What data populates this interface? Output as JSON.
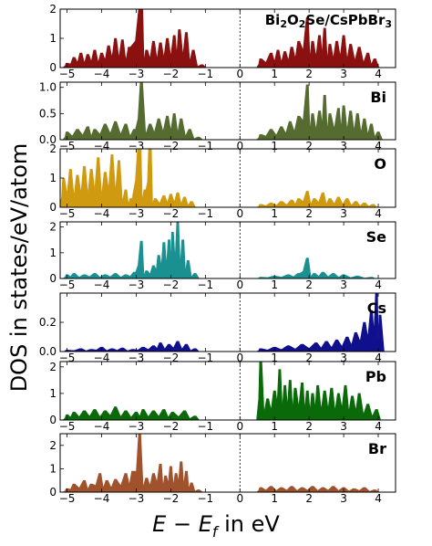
{
  "figure": {
    "ylabel": "DOS in states/eV/atom",
    "xlabel_italic": "E − E",
    "xlabel_sub": "f",
    "xlabel_rest": " in eV",
    "fermi_level": 0
  },
  "chart_data": [
    {
      "type": "area",
      "label_main": "Bi",
      "label_sub1": "2",
      "label_o": "O",
      "label_sub2": "2",
      "label_rest": "Se/CsPbBr",
      "label_sub3": "3",
      "color": "#8b1010",
      "xlim": [
        -5.2,
        4.5
      ],
      "ylim": [
        0,
        2
      ],
      "xticks": [
        -5,
        -4,
        -3,
        -2,
        -1,
        0,
        1,
        2,
        3,
        4
      ],
      "yticks": [
        0,
        1,
        2
      ],
      "peaks": [
        [
          -5.0,
          0.15
        ],
        [
          -4.8,
          0.35
        ],
        [
          -4.6,
          0.5
        ],
        [
          -4.4,
          0.45
        ],
        [
          -4.2,
          0.6
        ],
        [
          -4.0,
          0.5
        ],
        [
          -3.8,
          0.75
        ],
        [
          -3.6,
          1.0
        ],
        [
          -3.4,
          0.95
        ],
        [
          -3.2,
          0.7
        ],
        [
          -2.85,
          2.6
        ],
        [
          -2.7,
          0.6
        ],
        [
          -2.5,
          0.9
        ],
        [
          -2.3,
          0.85
        ],
        [
          -2.1,
          1.0
        ],
        [
          -1.9,
          1.1
        ],
        [
          -1.75,
          1.3
        ],
        [
          -1.55,
          1.2
        ],
        [
          -1.35,
          0.6
        ],
        [
          -1.1,
          0.1
        ],
        [
          0.6,
          0.3
        ],
        [
          0.9,
          0.5
        ],
        [
          1.1,
          0.6
        ],
        [
          1.3,
          0.55
        ],
        [
          1.5,
          0.7
        ],
        [
          1.7,
          0.9
        ],
        [
          1.95,
          1.7
        ],
        [
          2.1,
          0.9
        ],
        [
          2.3,
          1.1
        ],
        [
          2.45,
          1.35
        ],
        [
          2.6,
          0.8
        ],
        [
          2.8,
          0.9
        ],
        [
          3.0,
          1.1
        ],
        [
          3.2,
          0.8
        ],
        [
          3.45,
          0.7
        ],
        [
          3.7,
          0.5
        ],
        [
          3.9,
          0.3
        ]
      ]
    },
    {
      "type": "area",
      "label": "Bi",
      "color": "#556b2f",
      "xlim": [
        -5.2,
        4.5
      ],
      "ylim": [
        0,
        1.1
      ],
      "xticks": [
        -5,
        -4,
        -3,
        -2,
        -1,
        0,
        1,
        2,
        3,
        4
      ],
      "yticks": [
        0,
        0.5,
        1.0
      ],
      "ytick_labels": [
        "0.0",
        "0.5",
        "1.0"
      ],
      "peaks": [
        [
          -5.0,
          0.15
        ],
        [
          -4.7,
          0.2
        ],
        [
          -4.4,
          0.25
        ],
        [
          -4.2,
          0.2
        ],
        [
          -3.9,
          0.3
        ],
        [
          -3.6,
          0.35
        ],
        [
          -3.3,
          0.3
        ],
        [
          -3.05,
          0.2
        ],
        [
          -2.85,
          1.15
        ],
        [
          -2.6,
          0.3
        ],
        [
          -2.35,
          0.4
        ],
        [
          -2.1,
          0.45
        ],
        [
          -1.9,
          0.5
        ],
        [
          -1.7,
          0.4
        ],
        [
          -1.45,
          0.2
        ],
        [
          -1.2,
          0.05
        ],
        [
          0.6,
          0.1
        ],
        [
          0.9,
          0.2
        ],
        [
          1.2,
          0.25
        ],
        [
          1.45,
          0.35
        ],
        [
          1.7,
          0.45
        ],
        [
          1.95,
          1.05
        ],
        [
          2.1,
          0.5
        ],
        [
          2.3,
          0.55
        ],
        [
          2.45,
          0.85
        ],
        [
          2.6,
          0.5
        ],
        [
          2.85,
          0.6
        ],
        [
          3.0,
          0.65
        ],
        [
          3.2,
          0.55
        ],
        [
          3.4,
          0.5
        ],
        [
          3.6,
          0.4
        ],
        [
          3.8,
          0.3
        ],
        [
          4.0,
          0.15
        ]
      ]
    },
    {
      "type": "area",
      "label": "O",
      "color": "#d09a10",
      "xlim": [
        -5.2,
        4.5
      ],
      "ylim": [
        0,
        2
      ],
      "xticks": [
        -5,
        -4,
        -3,
        -2,
        -1,
        0,
        1,
        2,
        3,
        4
      ],
      "yticks": [
        0,
        1,
        2
      ],
      "peaks": [
        [
          -5.1,
          1.0
        ],
        [
          -4.9,
          1.3
        ],
        [
          -4.7,
          1.1
        ],
        [
          -4.5,
          1.4
        ],
        [
          -4.3,
          1.3
        ],
        [
          -4.1,
          1.7
        ],
        [
          -3.9,
          1.2
        ],
        [
          -3.7,
          1.8
        ],
        [
          -3.5,
          1.6
        ],
        [
          -3.3,
          0.6
        ],
        [
          -3.15,
          0.3
        ],
        [
          -2.9,
          2.6
        ],
        [
          -2.75,
          0.6
        ],
        [
          -2.6,
          2.5
        ],
        [
          -2.45,
          0.3
        ],
        [
          -2.2,
          0.4
        ],
        [
          -2.0,
          0.45
        ],
        [
          -1.8,
          0.5
        ],
        [
          -1.6,
          0.35
        ],
        [
          -1.4,
          0.2
        ],
        [
          0.6,
          0.1
        ],
        [
          0.9,
          0.15
        ],
        [
          1.2,
          0.2
        ],
        [
          1.5,
          0.25
        ],
        [
          1.7,
          0.3
        ],
        [
          1.95,
          0.55
        ],
        [
          2.15,
          0.3
        ],
        [
          2.4,
          0.5
        ],
        [
          2.6,
          0.3
        ],
        [
          2.85,
          0.35
        ],
        [
          3.1,
          0.3
        ],
        [
          3.35,
          0.2
        ],
        [
          3.6,
          0.15
        ],
        [
          3.85,
          0.1
        ]
      ]
    },
    {
      "type": "area",
      "label": "Se",
      "color": "#1a9090",
      "xlim": [
        -5.2,
        4.5
      ],
      "ylim": [
        0,
        2.2
      ],
      "xticks": [
        -5,
        -4,
        -3,
        -2,
        -1,
        0,
        1,
        2,
        3,
        4
      ],
      "yticks": [
        0,
        1,
        2
      ],
      "peaks": [
        [
          -5.0,
          0.15
        ],
        [
          -4.8,
          0.2
        ],
        [
          -4.5,
          0.15
        ],
        [
          -4.2,
          0.2
        ],
        [
          -3.9,
          0.15
        ],
        [
          -3.6,
          0.2
        ],
        [
          -3.3,
          0.15
        ],
        [
          -3.05,
          0.25
        ],
        [
          -2.85,
          1.45
        ],
        [
          -2.7,
          0.3
        ],
        [
          -2.5,
          0.5
        ],
        [
          -2.35,
          0.9
        ],
        [
          -2.2,
          1.4
        ],
        [
          -2.05,
          1.5
        ],
        [
          -1.95,
          1.8
        ],
        [
          -1.8,
          2.2
        ],
        [
          -1.65,
          1.5
        ],
        [
          -1.5,
          0.7
        ],
        [
          -1.3,
          0.2
        ],
        [
          0.6,
          0.05
        ],
        [
          1.0,
          0.1
        ],
        [
          1.4,
          0.15
        ],
        [
          1.7,
          0.2
        ],
        [
          1.95,
          0.8
        ],
        [
          2.15,
          0.2
        ],
        [
          2.4,
          0.25
        ],
        [
          2.7,
          0.2
        ],
        [
          3.0,
          0.15
        ],
        [
          3.4,
          0.1
        ],
        [
          3.8,
          0.05
        ]
      ]
    },
    {
      "type": "area",
      "label": "Cs",
      "color": "#10108c",
      "xlim": [
        -5.2,
        4.5
      ],
      "ylim": [
        0,
        0.4
      ],
      "xticks": [
        -5,
        -4,
        -3,
        -2,
        -1,
        0,
        1,
        2,
        3,
        4
      ],
      "yticks": [
        0,
        0.2
      ],
      "ytick_labels": [
        "0.0",
        "0.2"
      ],
      "peaks": [
        [
          -5.0,
          0.01
        ],
        [
          -4.6,
          0.02
        ],
        [
          -4.3,
          0.015
        ],
        [
          -4.0,
          0.03
        ],
        [
          -3.7,
          0.02
        ],
        [
          -3.4,
          0.025
        ],
        [
          -3.1,
          0.015
        ],
        [
          -2.8,
          0.03
        ],
        [
          -2.5,
          0.04
        ],
        [
          -2.3,
          0.06
        ],
        [
          -2.05,
          0.05
        ],
        [
          -1.8,
          0.07
        ],
        [
          -1.55,
          0.05
        ],
        [
          -1.3,
          0.02
        ],
        [
          0.6,
          0.02
        ],
        [
          1.0,
          0.03
        ],
        [
          1.4,
          0.04
        ],
        [
          1.8,
          0.05
        ],
        [
          2.2,
          0.06
        ],
        [
          2.5,
          0.07
        ],
        [
          2.8,
          0.08
        ],
        [
          3.1,
          0.1
        ],
        [
          3.35,
          0.13
        ],
        [
          3.6,
          0.2
        ],
        [
          3.8,
          0.28
        ],
        [
          3.95,
          0.4
        ],
        [
          4.05,
          0.25
        ]
      ]
    },
    {
      "type": "area",
      "label": "Pb",
      "color": "#0a6a0a",
      "xlim": [
        -5.2,
        4.5
      ],
      "ylim": [
        0,
        2.2
      ],
      "xticks": [
        -5,
        -4,
        -3,
        -2,
        -1,
        0,
        1,
        2,
        3,
        4
      ],
      "yticks": [
        0,
        1,
        2
      ],
      "peaks": [
        [
          -5.0,
          0.2
        ],
        [
          -4.8,
          0.3
        ],
        [
          -4.5,
          0.35
        ],
        [
          -4.2,
          0.4
        ],
        [
          -3.9,
          0.35
        ],
        [
          -3.6,
          0.5
        ],
        [
          -3.3,
          0.35
        ],
        [
          -3.0,
          0.3
        ],
        [
          -2.8,
          0.4
        ],
        [
          -2.5,
          0.35
        ],
        [
          -2.2,
          0.4
        ],
        [
          -1.95,
          0.3
        ],
        [
          -1.6,
          0.35
        ],
        [
          -1.3,
          0.15
        ],
        [
          0.6,
          2.3
        ],
        [
          0.8,
          0.8
        ],
        [
          1.0,
          1.1
        ],
        [
          1.15,
          1.9
        ],
        [
          1.3,
          1.3
        ],
        [
          1.45,
          1.5
        ],
        [
          1.6,
          1.2
        ],
        [
          1.8,
          1.4
        ],
        [
          1.95,
          1.1
        ],
        [
          2.1,
          1.0
        ],
        [
          2.25,
          1.3
        ],
        [
          2.45,
          1.1
        ],
        [
          2.65,
          1.2
        ],
        [
          2.85,
          1.0
        ],
        [
          3.05,
          1.3
        ],
        [
          3.25,
          0.9
        ],
        [
          3.45,
          1.0
        ],
        [
          3.7,
          0.6
        ],
        [
          3.95,
          0.4
        ]
      ]
    },
    {
      "type": "area",
      "label": "Br",
      "color": "#a0522d",
      "xlim": [
        -5.2,
        4.5
      ],
      "ylim": [
        0,
        2.5
      ],
      "xticks": [
        -5,
        -4,
        -3,
        -2,
        -1,
        0,
        1,
        2,
        3,
        4
      ],
      "yticks": [
        0,
        1,
        2
      ],
      "peaks": [
        [
          -5.0,
          0.15
        ],
        [
          -4.8,
          0.35
        ],
        [
          -4.5,
          0.5
        ],
        [
          -4.3,
          0.35
        ],
        [
          -4.05,
          0.8
        ],
        [
          -3.85,
          0.5
        ],
        [
          -3.6,
          0.55
        ],
        [
          -3.3,
          0.8
        ],
        [
          -3.1,
          0.9
        ],
        [
          -2.9,
          2.55
        ],
        [
          -2.7,
          0.6
        ],
        [
          -2.5,
          0.8
        ],
        [
          -2.3,
          1.2
        ],
        [
          -2.15,
          0.7
        ],
        [
          -2.0,
          1.1
        ],
        [
          -1.85,
          0.8
        ],
        [
          -1.7,
          1.3
        ],
        [
          -1.55,
          0.9
        ],
        [
          -1.4,
          0.4
        ],
        [
          -1.2,
          0.1
        ],
        [
          0.6,
          0.2
        ],
        [
          0.9,
          0.25
        ],
        [
          1.2,
          0.2
        ],
        [
          1.5,
          0.25
        ],
        [
          1.8,
          0.2
        ],
        [
          2.1,
          0.25
        ],
        [
          2.4,
          0.2
        ],
        [
          2.7,
          0.25
        ],
        [
          3.0,
          0.2
        ],
        [
          3.3,
          0.15
        ],
        [
          3.6,
          0.2
        ],
        [
          3.9,
          0.1
        ]
      ]
    }
  ]
}
